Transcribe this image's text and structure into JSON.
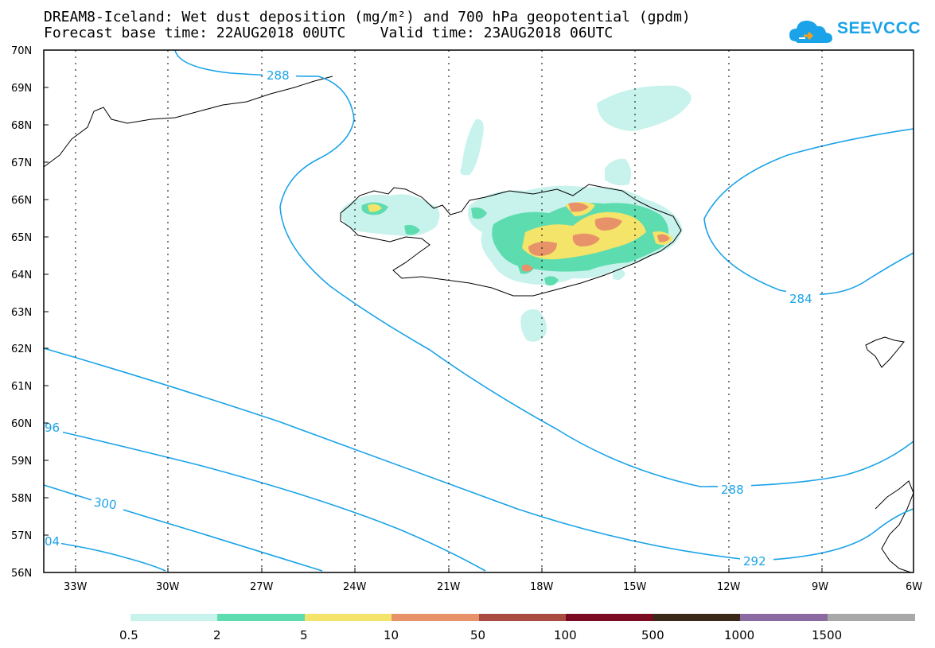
{
  "header": {
    "title_line1": "DREAM8-Iceland: Wet dust deposition (mg/m²) and 700 hPa geopotential (gpdm)",
    "title_line2": "Forecast base time: 22AUG2018 00UTC    Valid time: 23AUG2018 06UTC"
  },
  "logo": {
    "text": "SEEVCCC",
    "icon": "cloud-logo-icon",
    "color": "#1aa3e8"
  },
  "map": {
    "lat_labels": [
      "70N",
      "69N",
      "68N",
      "67N",
      "66N",
      "65N",
      "64N",
      "63N",
      "62N",
      "61N",
      "60N",
      "59N",
      "58N",
      "57N",
      "56N"
    ],
    "lon_labels": [
      "33W",
      "30W",
      "27W",
      "24W",
      "21W",
      "18W",
      "15W",
      "12W",
      "9W",
      "6W"
    ],
    "contour_color": "#1aa3e8",
    "contour_labels": [
      "288",
      "284",
      "288",
      "292",
      "96",
      "300",
      "04"
    ],
    "grid": "dotted"
  },
  "legend": {
    "labels": [
      "0.5",
      "2",
      "5",
      "10",
      "50",
      "100",
      "500",
      "1000",
      "1500"
    ],
    "colors": [
      "#c8f2ec",
      "#5ddcb0",
      "#f4e46a",
      "#e8926a",
      "#a84c42",
      "#7a0a22",
      "#3a2818",
      "#8a6aa0",
      "#a8a8a8"
    ]
  }
}
